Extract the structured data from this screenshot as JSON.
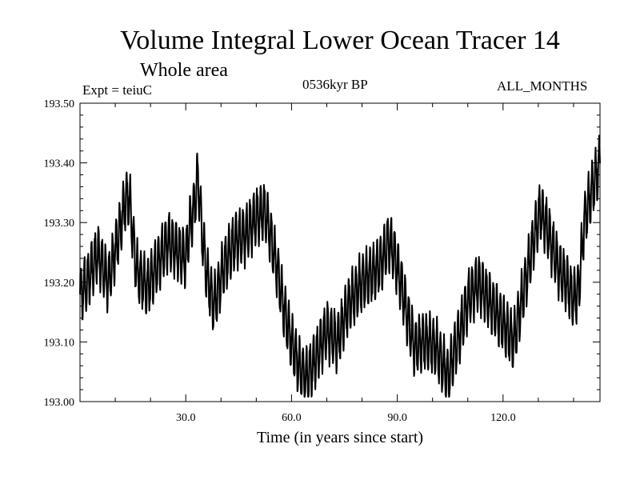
{
  "chart_data": {
    "type": "line",
    "title": "Volume Integral Lower Ocean Tracer 14",
    "subtitle": "Whole area",
    "experiment_label": "Expt = teiuC",
    "period_label": "0536kyr BP",
    "months_label": "ALL_MONTHS",
    "xlabel": "Time (in years since start)",
    "ylabel": "",
    "xlim": [
      0,
      147.5
    ],
    "ylim": [
      193.0,
      193.5
    ],
    "x_ticks": [
      30,
      60,
      90,
      120
    ],
    "x_tick_labels": [
      "30.0",
      "60.0",
      "90.0",
      "120.0"
    ],
    "x_minor_step": 10,
    "y_ticks": [
      193.0,
      193.1,
      193.2,
      193.3,
      193.4,
      193.5
    ],
    "y_tick_labels": [
      "193.00",
      "193.10",
      "193.20",
      "193.30",
      "193.40",
      "193.50"
    ],
    "y_minor_step": 0.02,
    "grid": false,
    "line_color": "#000000",
    "series": [
      {
        "name": "Volume Integral Lower Ocean Tracer 14",
        "seasonal_amplitude": 0.045,
        "x": [
          0,
          2,
          5,
          8,
          11,
          13,
          14,
          16,
          19,
          22,
          25,
          28,
          30,
          31,
          32.5,
          33.5,
          34.5,
          36,
          38,
          41,
          44,
          47,
          50,
          52.5,
          54,
          56,
          58,
          60,
          62,
          64,
          66,
          68,
          70,
          73,
          76,
          80,
          84,
          86,
          87.5,
          89,
          91,
          93,
          95,
          97,
          99,
          101,
          103,
          104.5,
          106,
          108,
          110,
          113,
          116,
          119,
          121,
          123,
          125,
          127,
          129,
          130.5,
          132,
          134,
          136,
          138,
          140,
          141.5,
          143,
          145,
          146.5,
          147.5
        ],
        "y": [
          193.18,
          193.2,
          193.25,
          193.2,
          193.28,
          193.34,
          193.34,
          193.22,
          193.19,
          193.23,
          193.27,
          193.25,
          193.24,
          193.29,
          193.33,
          193.38,
          193.29,
          193.21,
          193.16,
          193.23,
          193.27,
          193.28,
          193.31,
          193.32,
          193.28,
          193.22,
          193.15,
          193.1,
          193.06,
          193.04,
          193.06,
          193.09,
          193.12,
          193.1,
          193.16,
          193.2,
          193.22,
          193.24,
          193.27,
          193.25,
          193.2,
          193.14,
          193.09,
          193.1,
          193.1,
          193.09,
          193.06,
          193.04,
          193.08,
          193.12,
          193.17,
          193.2,
          193.17,
          193.14,
          193.12,
          193.1,
          193.16,
          193.22,
          193.28,
          193.32,
          193.3,
          193.26,
          193.22,
          193.2,
          193.17,
          193.19,
          193.3,
          193.35,
          193.38,
          193.4
        ]
      }
    ]
  }
}
